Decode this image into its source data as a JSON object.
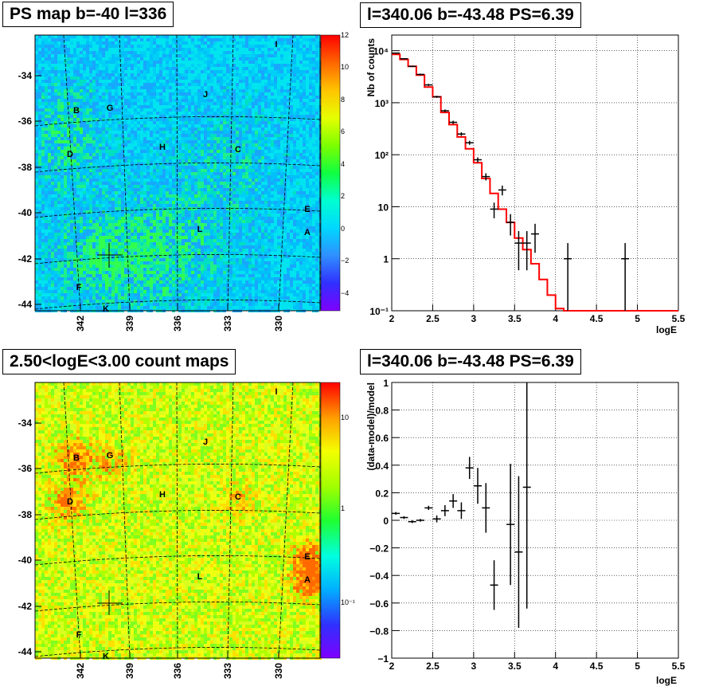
{
  "panels": {
    "ps_map_title": "PS map b=-40 l=336",
    "spectrum_title": "l=340.06 b=-43.48 PS=6.39",
    "count_map_title": "2.50<logE<3.00 count maps",
    "residual_title": "l=340.06 b=-43.48 PS=6.39"
  },
  "maps": {
    "lat_ticks": [
      "-34",
      "-36",
      "-38",
      "-40",
      "-42",
      "-44"
    ],
    "lon_ticks": [
      "342",
      "339",
      "336",
      "333",
      "330"
    ],
    "sources": [
      "I",
      "J",
      "B",
      "G",
      "D",
      "H",
      "C",
      "E",
      "A",
      "L",
      "F",
      "K"
    ],
    "ps_colorbar_ticks": [
      "12",
      "10",
      "8",
      "6",
      "4",
      "2",
      "0",
      "−2",
      "−4"
    ],
    "count_colorbar_ticks": [
      "10",
      "1",
      "10⁻¹"
    ]
  },
  "chart_data": [
    {
      "type": "line",
      "name": "spectrum",
      "xlabel": "logE",
      "ylabel": "Nb of counts",
      "xlim": [
        2,
        5.5
      ],
      "ylim": [
        0.1,
        20000
      ],
      "yscale": "log",
      "x_ticks": [
        "2",
        "2.5",
        "3",
        "3.5",
        "4",
        "4.5",
        "5",
        "5.5"
      ],
      "y_ticks": [
        "10⁻¹",
        "1",
        "10",
        "10²",
        "10³",
        "10⁴"
      ],
      "grid": true,
      "data_points": [
        {
          "x": 2.05,
          "y": 9000,
          "ylo": 8800,
          "yhi": 9200
        },
        {
          "x": 2.15,
          "y": 7000,
          "ylo": 6800,
          "yhi": 7200
        },
        {
          "x": 2.25,
          "y": 5000,
          "ylo": 4850,
          "yhi": 5150
        },
        {
          "x": 2.35,
          "y": 3500,
          "ylo": 3380,
          "yhi": 3620
        },
        {
          "x": 2.45,
          "y": 2200,
          "ylo": 2100,
          "yhi": 2300
        },
        {
          "x": 2.55,
          "y": 1300,
          "ylo": 1240,
          "yhi": 1360
        },
        {
          "x": 2.65,
          "y": 700,
          "ylo": 660,
          "yhi": 740
        },
        {
          "x": 2.75,
          "y": 420,
          "ylo": 390,
          "yhi": 450
        },
        {
          "x": 2.85,
          "y": 250,
          "ylo": 230,
          "yhi": 270
        },
        {
          "x": 2.95,
          "y": 170,
          "ylo": 155,
          "yhi": 185
        },
        {
          "x": 3.05,
          "y": 80,
          "ylo": 71,
          "yhi": 89
        },
        {
          "x": 3.15,
          "y": 38,
          "ylo": 32,
          "yhi": 44
        },
        {
          "x": 3.25,
          "y": 9,
          "ylo": 6,
          "yhi": 12
        },
        {
          "x": 3.35,
          "y": 21,
          "ylo": 16.5,
          "yhi": 25.5
        },
        {
          "x": 3.45,
          "y": 5,
          "ylo": 2.8,
          "yhi": 7.2
        },
        {
          "x": 3.55,
          "y": 2,
          "ylo": 0.6,
          "yhi": 3.4
        },
        {
          "x": 3.65,
          "y": 2,
          "ylo": 0.6,
          "yhi": 3.4
        },
        {
          "x": 3.75,
          "y": 3,
          "ylo": 1.3,
          "yhi": 4.7
        },
        {
          "x": 4.15,
          "y": 1,
          "ylo": 0.1,
          "yhi": 2
        },
        {
          "x": 4.85,
          "y": 1,
          "ylo": 0.1,
          "yhi": 2
        }
      ],
      "model_step": {
        "edges": [
          2.0,
          2.1,
          2.2,
          2.3,
          2.4,
          2.5,
          2.6,
          2.7,
          2.8,
          2.9,
          3.0,
          3.1,
          3.2,
          3.3,
          3.4,
          3.5,
          3.6,
          3.7,
          3.8,
          3.9,
          4.0,
          4.1,
          5.5
        ],
        "values": [
          8500,
          6800,
          5000,
          3400,
          2000,
          1300,
          650,
          380,
          220,
          130,
          70,
          35,
          18,
          9,
          5,
          2.5,
          1.5,
          0.8,
          0.4,
          0.2,
          0.11,
          0.1
        ]
      }
    },
    {
      "type": "scatter",
      "name": "residuals",
      "xlabel": "logE",
      "ylabel": "(data-model)/model",
      "xlim": [
        2,
        5.5
      ],
      "ylim": [
        -1,
        1
      ],
      "x_ticks": [
        "2",
        "2.5",
        "3",
        "3.5",
        "4",
        "4.5",
        "5",
        "5.5"
      ],
      "y_ticks": [
        "1",
        "0.8",
        "0.6",
        "0.4",
        "0.2",
        "0",
        "−0.2",
        "−0.4",
        "−0.6",
        "−0.8",
        "−1"
      ],
      "grid": true,
      "data_points": [
        {
          "x": 2.05,
          "y": 0.05,
          "err": 0.01
        },
        {
          "x": 2.15,
          "y": 0.02,
          "err": 0.01
        },
        {
          "x": 2.25,
          "y": -0.01,
          "err": 0.01
        },
        {
          "x": 2.35,
          "y": 0.0,
          "err": 0.01
        },
        {
          "x": 2.45,
          "y": 0.09,
          "err": 0.015
        },
        {
          "x": 2.55,
          "y": 0.01,
          "err": 0.025
        },
        {
          "x": 2.65,
          "y": 0.07,
          "err": 0.04
        },
        {
          "x": 2.75,
          "y": 0.14,
          "err": 0.05
        },
        {
          "x": 2.85,
          "y": 0.07,
          "err": 0.06
        },
        {
          "x": 2.95,
          "y": 0.38,
          "err": 0.08
        },
        {
          "x": 3.05,
          "y": 0.25,
          "err": 0.13
        },
        {
          "x": 3.15,
          "y": 0.09,
          "err": 0.18
        },
        {
          "x": 3.25,
          "y": -0.47,
          "err": 0.18
        },
        {
          "x": 3.45,
          "y": -0.03,
          "err": 0.44
        },
        {
          "x": 3.55,
          "y": -0.23,
          "err": 0.55
        },
        {
          "x": 3.65,
          "y": 0.24,
          "err": 0.88
        }
      ]
    }
  ]
}
